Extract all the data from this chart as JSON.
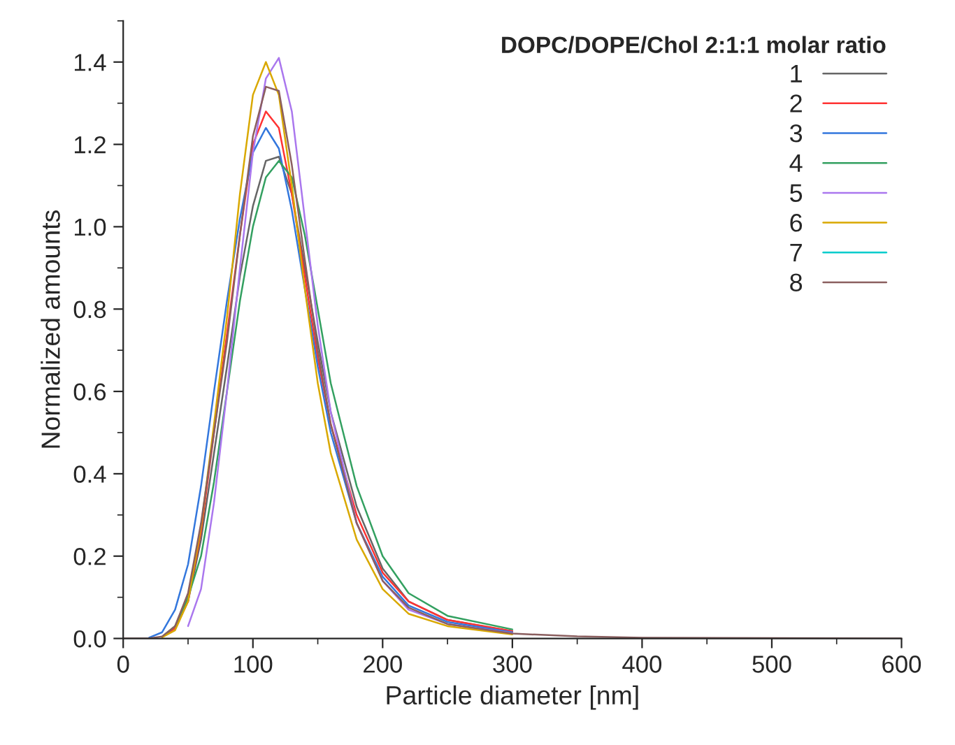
{
  "chart_data": {
    "type": "line",
    "xlabel": "Particle diameter [nm]",
    "ylabel": "Normalized amounts",
    "legend_title": "DOPC/DOPE/Chol 2:1:1 molar ratio",
    "legend": "top right",
    "grid": false,
    "marker": "none",
    "line_style": "solid",
    "x": [
      0,
      20,
      30,
      40,
      50,
      60,
      70,
      80,
      90,
      100,
      110,
      120,
      130,
      140,
      150,
      160,
      180,
      200,
      220,
      250,
      300,
      350,
      400,
      500,
      600
    ],
    "xlim": [
      0,
      600
    ],
    "xticks": [
      0,
      100,
      200,
      300,
      400,
      500,
      600
    ],
    "ylim": [
      0,
      1.5
    ],
    "yticks": [
      {
        "value": 0,
        "label": "0.0"
      },
      0.2,
      0.4,
      0.6,
      0.8,
      {
        "value": 1,
        "label": "1.0"
      },
      1.2,
      1.4
    ],
    "series": [
      {
        "name": "1",
        "color": "#666666",
        "values": [
          null,
          null,
          0.004,
          0.025,
          0.09,
          0.24,
          0.45,
          0.66,
          0.88,
          1.05,
          1.16,
          1.17,
          1.08,
          0.9,
          0.72,
          0.55,
          0.32,
          0.17,
          0.09,
          0.045,
          0.017,
          null,
          null,
          null,
          null
        ]
      },
      {
        "name": "2",
        "color": "#ff3333",
        "values": [
          null,
          null,
          0.004,
          0.025,
          0.09,
          0.26,
          0.5,
          0.74,
          0.98,
          1.2,
          1.28,
          1.24,
          1.08,
          0.88,
          0.68,
          0.52,
          0.3,
          0.16,
          0.09,
          0.045,
          0.018,
          null,
          null,
          null,
          null
        ]
      },
      {
        "name": "3",
        "color": "#3377dd",
        "values": [
          null,
          0.002,
          0.015,
          0.07,
          0.18,
          0.37,
          0.6,
          0.82,
          1.02,
          1.18,
          1.24,
          1.19,
          1.04,
          0.85,
          0.66,
          0.5,
          0.28,
          0.15,
          0.08,
          0.04,
          0.015,
          null,
          null,
          null,
          null
        ]
      },
      {
        "name": "4",
        "color": "#33a060",
        "values": [
          null,
          null,
          0.004,
          0.03,
          0.1,
          0.2,
          0.38,
          0.6,
          0.82,
          1.0,
          1.12,
          1.16,
          1.12,
          0.98,
          0.8,
          0.62,
          0.37,
          0.2,
          0.11,
          0.055,
          0.022,
          null,
          null,
          null,
          null
        ]
      },
      {
        "name": "5",
        "color": "#aa77ee",
        "values": [
          null,
          null,
          null,
          null,
          0.03,
          0.12,
          0.33,
          0.6,
          0.9,
          1.18,
          1.36,
          1.41,
          1.28,
          1.02,
          0.76,
          0.55,
          0.28,
          0.14,
          0.07,
          0.035,
          0.013,
          null,
          null,
          null,
          null
        ]
      },
      {
        "name": "6",
        "color": "#d9a800",
        "values": [
          null,
          null,
          0.003,
          0.02,
          0.09,
          0.27,
          0.52,
          0.78,
          1.08,
          1.32,
          1.4,
          1.32,
          1.1,
          0.85,
          0.62,
          0.45,
          0.24,
          0.12,
          0.06,
          0.03,
          0.01,
          null,
          null,
          null,
          null
        ]
      },
      {
        "name": "7",
        "color": "#00cccc",
        "values": [
          null,
          null,
          null,
          null,
          null,
          null,
          null,
          null,
          null,
          null,
          null,
          null,
          null,
          null,
          null,
          null,
          null,
          null,
          null,
          null,
          null,
          null,
          null,
          null,
          null
        ]
      },
      {
        "name": "8",
        "color": "#8b5f5f",
        "values": [
          0,
          0,
          0.005,
          0.03,
          0.11,
          0.28,
          0.5,
          0.72,
          0.98,
          1.22,
          1.34,
          1.33,
          1.15,
          0.92,
          0.7,
          0.52,
          0.28,
          0.14,
          0.075,
          0.035,
          0.012,
          0.005,
          0.002,
          0.001,
          0
        ]
      }
    ]
  }
}
